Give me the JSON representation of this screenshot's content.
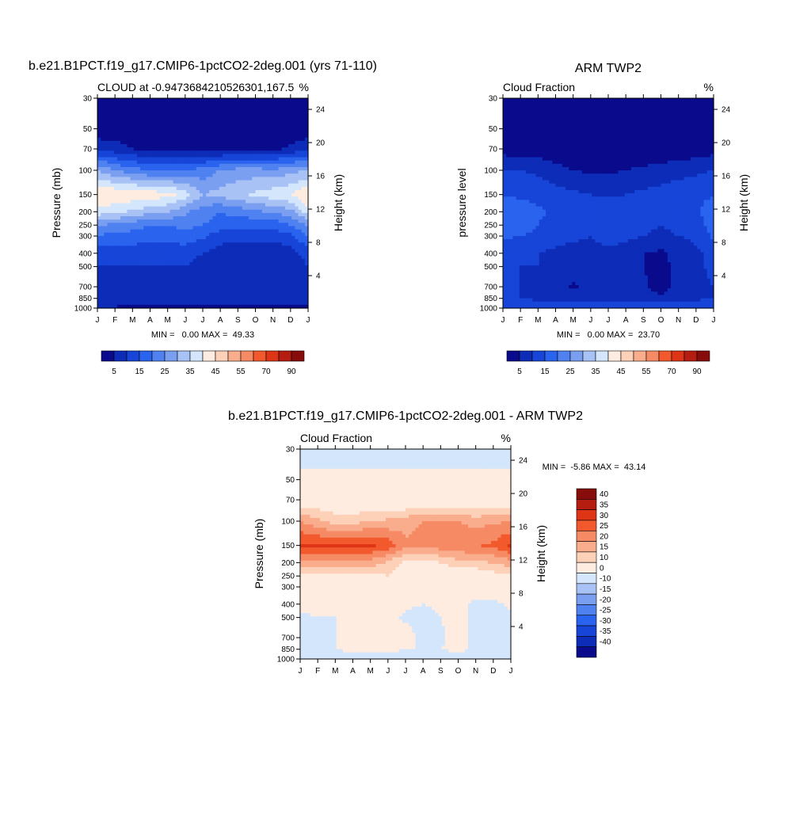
{
  "chart_data": [
    {
      "type": "heatmap",
      "title": "b.e21.B1PCT.f19_g17.CMIP6-1pctCO2-2deg.001 (yrs 71-110)",
      "subtitle_left": "CLOUD at -0.9473684210526301,167.5",
      "subtitle_right": "%",
      "ylabel": "Pressure (mb)",
      "ylabel_right": "Height (km)",
      "x_ticks": [
        "J",
        "F",
        "M",
        "A",
        "M",
        "J",
        "J",
        "A",
        "S",
        "O",
        "N",
        "D",
        "J"
      ],
      "y_ticks": [
        "30",
        "50",
        "70",
        "100",
        "150",
        "200",
        "250",
        "300",
        "400",
        "500",
        "700",
        "850",
        "1000"
      ],
      "y_ticks_right": [
        "24",
        "20",
        "16",
        "12",
        "8",
        "4"
      ],
      "stats": "MIN =   0.00 MAX =  49.33",
      "colorbar_labels": [
        "5",
        "15",
        "25",
        "35",
        "45",
        "55",
        "70",
        "90"
      ],
      "colorbar_colors": [
        "#0a0a8c",
        "#0d2cb8",
        "#1645d8",
        "#2a63ee",
        "#4f82f0",
        "#7a9ef0",
        "#a8c2f5",
        "#d4e6fb",
        "#ffece0",
        "#fdd0b8",
        "#f9ad8d",
        "#f58a64",
        "#f25a2e",
        "#de3517",
        "#b61d11",
        "#870c0c"
      ],
      "months": [
        "J",
        "F",
        "M",
        "A",
        "M",
        "J",
        "J",
        "A",
        "S",
        "O",
        "N",
        "D",
        "J"
      ],
      "levels": [
        30,
        50,
        70,
        100,
        150,
        200,
        250,
        300,
        400,
        500,
        700,
        850,
        1000
      ],
      "values": [
        [
          0,
          0,
          0,
          0,
          0,
          0,
          0,
          0,
          0,
          0,
          0,
          0,
          0
        ],
        [
          2,
          2,
          1,
          1,
          1,
          1,
          1,
          1,
          1,
          1,
          1,
          2,
          2
        ],
        [
          8,
          7,
          5,
          4,
          3,
          3,
          3,
          3,
          3,
          3,
          4,
          6,
          8
        ],
        [
          30,
          25,
          22,
          20,
          20,
          20,
          22,
          25,
          27,
          27,
          26,
          28,
          30
        ],
        [
          45,
          45,
          44,
          43,
          42,
          38,
          30,
          32,
          34,
          36,
          38,
          40,
          45
        ],
        [
          38,
          36,
          34,
          32,
          30,
          26,
          22,
          20,
          22,
          24,
          26,
          28,
          38
        ],
        [
          25,
          24,
          22,
          20,
          20,
          22,
          20,
          18,
          16,
          16,
          16,
          20,
          25
        ],
        [
          20,
          18,
          18,
          17,
          17,
          18,
          16,
          12,
          12,
          12,
          12,
          14,
          20
        ],
        [
          12,
          12,
          12,
          12,
          12,
          12,
          10,
          8,
          6,
          6,
          6,
          8,
          12
        ],
        [
          10,
          10,
          10,
          10,
          10,
          10,
          8,
          6,
          5,
          5,
          5,
          7,
          10
        ],
        [
          10,
          9,
          9,
          9,
          9,
          9,
          8,
          6,
          5,
          5,
          5,
          7,
          10
        ],
        [
          10,
          10,
          9,
          9,
          9,
          9,
          9,
          8,
          7,
          7,
          7,
          8,
          10
        ],
        [
          4,
          4,
          4,
          4,
          4,
          4,
          4,
          4,
          4,
          4,
          4,
          4,
          4
        ]
      ]
    },
    {
      "type": "heatmap",
      "title": "ARM TWP2",
      "subtitle_left": "Cloud Fraction",
      "subtitle_right": "%",
      "ylabel": "pressure level",
      "ylabel_right": "Height (km)",
      "x_ticks": [
        "J",
        "F",
        "M",
        "A",
        "M",
        "J",
        "J",
        "A",
        "S",
        "O",
        "N",
        "D",
        "J"
      ],
      "y_ticks": [
        "30",
        "50",
        "70",
        "100",
        "150",
        "200",
        "250",
        "300",
        "400",
        "500",
        "700",
        "850",
        "1000"
      ],
      "y_ticks_right": [
        "24",
        "20",
        "16",
        "12",
        "8",
        "4"
      ],
      "stats": "MIN =   0.00 MAX =  23.70",
      "colorbar_labels": [
        "5",
        "15",
        "25",
        "35",
        "45",
        "55",
        "70",
        "90"
      ],
      "colorbar_colors": [
        "#0a0a8c",
        "#0d2cb8",
        "#1645d8",
        "#2a63ee",
        "#4f82f0",
        "#7a9ef0",
        "#a8c2f5",
        "#d4e6fb",
        "#ffece0",
        "#fdd0b8",
        "#f9ad8d",
        "#f58a64",
        "#f25a2e",
        "#de3517",
        "#b61d11",
        "#870c0c"
      ],
      "months": [
        "J",
        "F",
        "M",
        "A",
        "M",
        "J",
        "J",
        "A",
        "S",
        "O",
        "N",
        "D",
        "J"
      ],
      "levels": [
        30,
        50,
        70,
        100,
        150,
        200,
        250,
        300,
        400,
        500,
        700,
        850,
        1000
      ],
      "values": [
        [
          0,
          0,
          0,
          0,
          0,
          0,
          0,
          0,
          0,
          0,
          0,
          0,
          0
        ],
        [
          0,
          0,
          0,
          0,
          0,
          0,
          0,
          0,
          0,
          0,
          0,
          0,
          0
        ],
        [
          3,
          2,
          2,
          1,
          1,
          1,
          1,
          1,
          1,
          1,
          1,
          2,
          3
        ],
        [
          10,
          10,
          9,
          7,
          5,
          4,
          4,
          5,
          6,
          7,
          8,
          9,
          10
        ],
        [
          14,
          14,
          13,
          12,
          11,
          10,
          9,
          10,
          11,
          12,
          13,
          14,
          14
        ],
        [
          20,
          18,
          16,
          14,
          12,
          12,
          14,
          12,
          12,
          11,
          12,
          13,
          20
        ],
        [
          18,
          17,
          15,
          13,
          12,
          12,
          13,
          12,
          11,
          10,
          11,
          12,
          18
        ],
        [
          16,
          15,
          14,
          12,
          11,
          10,
          12,
          11,
          10,
          9,
          10,
          11,
          16
        ],
        [
          11,
          10,
          10,
          9,
          8,
          8,
          9,
          8,
          5,
          4,
          7,
          9,
          11
        ],
        [
          11,
          10,
          10,
          9,
          8,
          8,
          9,
          8,
          5,
          3,
          7,
          9,
          11
        ],
        [
          10,
          10,
          9,
          8,
          4,
          8,
          5,
          8,
          6,
          3,
          7,
          9,
          10
        ],
        [
          10,
          10,
          9,
          8,
          8,
          8,
          9,
          8,
          7,
          6,
          8,
          9,
          10
        ],
        [
          14,
          14,
          14,
          14,
          14,
          14,
          14,
          14,
          14,
          14,
          14,
          14,
          14
        ]
      ]
    },
    {
      "type": "heatmap",
      "title": "b.e21.B1PCT.f19_g17.CMIP6-1pctCO2-2deg.001 - ARM TWP2",
      "subtitle_left": "Cloud Fraction",
      "subtitle_right": "%",
      "ylabel": "Pressure (mb)",
      "ylabel_right": "Height (km)",
      "x_ticks": [
        "J",
        "F",
        "M",
        "A",
        "M",
        "J",
        "J",
        "A",
        "S",
        "O",
        "N",
        "D",
        "J"
      ],
      "y_ticks": [
        "30",
        "50",
        "70",
        "100",
        "150",
        "200",
        "250",
        "300",
        "400",
        "500",
        "700",
        "850",
        "1000"
      ],
      "y_ticks_right": [
        "24",
        "20",
        "16",
        "12",
        "8",
        "4"
      ],
      "stats": "MIN =  -5.86 MAX =  43.14",
      "colorbar_labels": [
        "40",
        "35",
        "30",
        "25",
        "20",
        "15",
        "10",
        "0",
        "-10",
        "-15",
        "-20",
        "-25",
        "-30",
        "-35",
        "-40"
      ],
      "colorbar_colors": [
        "#870c0c",
        "#b61d11",
        "#de3517",
        "#f25a2e",
        "#f58a64",
        "#f9ad8d",
        "#fdd0b8",
        "#ffece0",
        "#d4e6fb",
        "#a8c2f5",
        "#7a9ef0",
        "#4f82f0",
        "#2a63ee",
        "#1645d8",
        "#0d2cb8",
        "#0a0a8c"
      ],
      "months": [
        "J",
        "F",
        "M",
        "A",
        "M",
        "J",
        "J",
        "A",
        "S",
        "O",
        "N",
        "D",
        "J"
      ],
      "levels": [
        30,
        50,
        70,
        100,
        150,
        200,
        250,
        300,
        400,
        500,
        700,
        850,
        1000
      ],
      "values": [
        [
          -3,
          -3,
          -3,
          -3,
          -3,
          -3,
          -3,
          -3,
          -3,
          -3,
          -3,
          -3,
          -3
        ],
        [
          2,
          2,
          2,
          2,
          2,
          2,
          2,
          2,
          2,
          2,
          2,
          2,
          2
        ],
        [
          5,
          5,
          4,
          4,
          4,
          3,
          3,
          3,
          3,
          3,
          3,
          4,
          5
        ],
        [
          20,
          16,
          13,
          13,
          15,
          16,
          18,
          20,
          21,
          20,
          18,
          19,
          20
        ],
        [
          31,
          31,
          31,
          31,
          31,
          28,
          21,
          22,
          23,
          24,
          25,
          26,
          31
        ],
        [
          18,
          18,
          18,
          18,
          18,
          14,
          8,
          8,
          10,
          13,
          14,
          15,
          18
        ],
        [
          7,
          7,
          7,
          7,
          8,
          10,
          7,
          6,
          5,
          6,
          5,
          8,
          7
        ],
        [
          4,
          3,
          4,
          5,
          6,
          8,
          4,
          1,
          2,
          3,
          2,
          3,
          4
        ],
        [
          1,
          2,
          2,
          3,
          4,
          4,
          1,
          0,
          1,
          2,
          -1,
          -1,
          1
        ],
        [
          -1,
          0,
          0,
          1,
          2,
          2,
          -1,
          -2,
          0,
          2,
          -2,
          -2,
          -1
        ],
        [
          0,
          -1,
          0,
          1,
          5,
          1,
          3,
          -2,
          -1,
          2,
          -2,
          -2,
          0
        ],
        [
          0,
          0,
          0,
          1,
          1,
          1,
          0,
          0,
          0,
          1,
          -1,
          -1,
          0
        ],
        [
          -2,
          -2,
          -2,
          -2,
          -2,
          -2,
          -2,
          -2,
          -2,
          -2,
          -2,
          -2,
          -2
        ]
      ]
    }
  ]
}
